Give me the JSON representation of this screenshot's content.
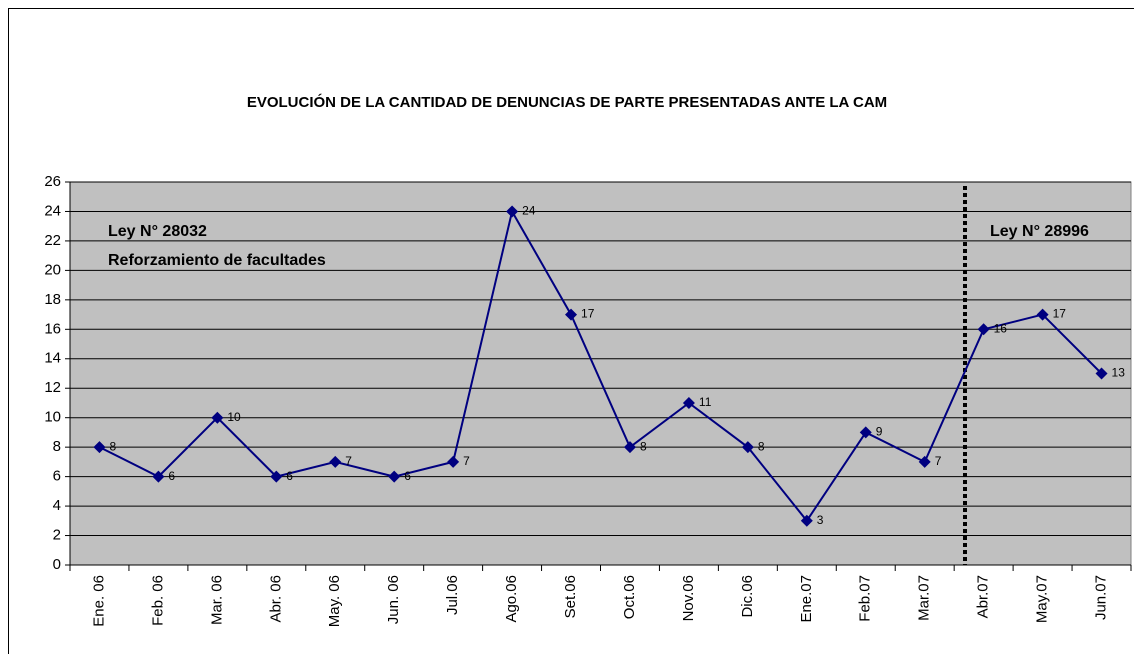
{
  "chart_data": {
    "type": "line",
    "title": "EVOLUCIÓN DE LA CANTIDAD DE DENUNCIAS DE PARTE PRESENTADAS ANTE LA CAM",
    "categories": [
      "Ene. 06",
      "Feb. 06",
      "Mar. 06",
      "Abr. 06",
      "May. 06",
      "Jun. 06",
      "Jul.06",
      "Ago.06",
      "Set.06",
      "Oct.06",
      "Nov.06",
      "Dic.06",
      "Ene.07",
      "Feb.07",
      "Mar.07",
      "Abr.07",
      "May.07",
      "Jun.07"
    ],
    "values": [
      8,
      6,
      10,
      6,
      7,
      6,
      7,
      24,
      17,
      8,
      11,
      8,
      3,
      9,
      7,
      16,
      17,
      13
    ],
    "color": "#000080",
    "ylim": [
      0,
      26
    ],
    "yticks": [
      0,
      2,
      4,
      6,
      8,
      10,
      12,
      14,
      16,
      18,
      20,
      22,
      24,
      26
    ],
    "grid": true,
    "annotations": [
      "Ley N° 28032",
      "Reforzamiento de facultades",
      "Ley N° 28996"
    ]
  }
}
